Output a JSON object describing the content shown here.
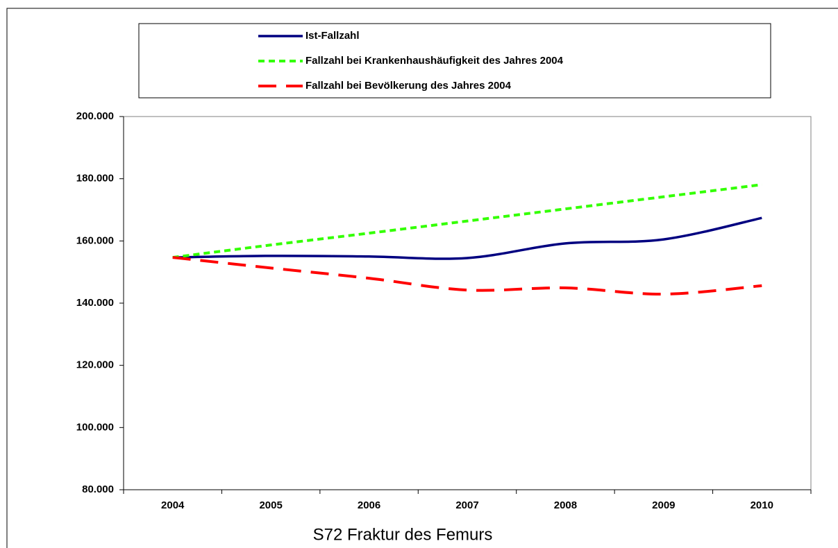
{
  "chart_data": {
    "type": "line",
    "title": "S72 Fraktur des Femurs",
    "categories": [
      "2004",
      "2005",
      "2006",
      "2007",
      "2008",
      "2009",
      "2010"
    ],
    "series": [
      {
        "name": "Ist-Fallzahl",
        "color": "#000080",
        "line_style": "solid",
        "values": [
          154700,
          155200,
          155000,
          154500,
          159200,
          160500,
          167400
        ]
      },
      {
        "name": "Fallzahl bei Krankenhaushäufigkeit des Jahres 2004",
        "color": "#33ff00",
        "line_style": "dotted",
        "values": [
          154700,
          158700,
          162500,
          166400,
          170300,
          174200,
          178100
        ]
      },
      {
        "name": "Fallzahl bei Bevölkerung des Jahres 2004",
        "color": "#ff0000",
        "line_style": "dashed",
        "values": [
          154700,
          151300,
          148000,
          144200,
          144900,
          142900,
          145600
        ]
      }
    ],
    "ylim": [
      80000,
      200000
    ],
    "yticks": [
      {
        "value": 80000,
        "label": "80.000"
      },
      {
        "value": 100000,
        "label": "100.000"
      },
      {
        "value": 120000,
        "label": "120.000"
      },
      {
        "value": 140000,
        "label": "140.000"
      },
      {
        "value": 160000,
        "label": "160.000"
      },
      {
        "value": 180000,
        "label": "180.000"
      },
      {
        "value": 200000,
        "label": "200.000"
      }
    ],
    "grid": false,
    "legend": "top"
  }
}
